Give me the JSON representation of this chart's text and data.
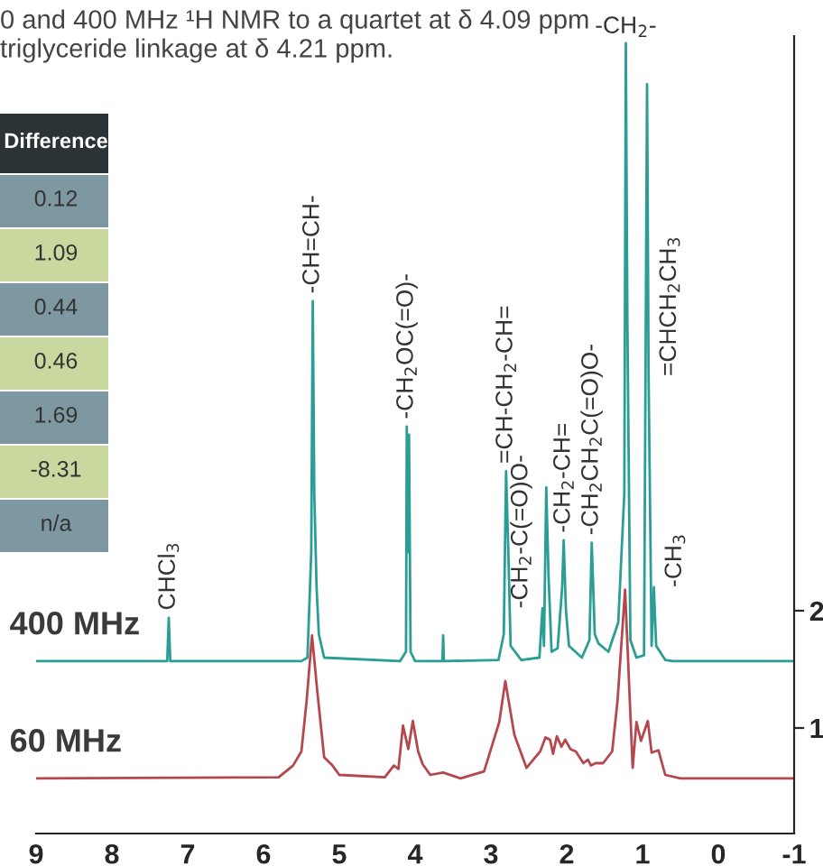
{
  "chart_data": {
    "type": "line",
    "xlim": [
      9,
      -1
    ],
    "xticks": [
      9,
      8,
      7,
      6,
      5,
      4,
      3,
      2,
      1,
      0,
      -1
    ],
    "ylim": [
      0.1,
      6.9
    ],
    "yticks": [
      1,
      2
    ],
    "legend": false,
    "grid": false,
    "series": [
      {
        "name": "400 MHz",
        "color": "#2a9d95",
        "x": [
          9,
          7.27,
          7.25,
          7.23,
          5.5,
          5.42,
          5.37,
          5.35,
          5.33,
          5.3,
          5.27,
          5.2,
          4.2,
          4.12,
          4.11,
          4.09,
          4.08,
          4.06,
          4.0,
          3.64,
          3.63,
          3.62,
          2.9,
          2.83,
          2.8,
          2.77,
          2.74,
          2.6,
          2.36,
          2.32,
          2.3,
          2.27,
          2.24,
          2.2,
          2.12,
          2.06,
          2.04,
          2.01,
          1.97,
          1.8,
          1.7,
          1.67,
          1.63,
          1.58,
          1.45,
          1.32,
          1.24,
          1.22,
          1.2,
          1.16,
          1.08,
          0.98,
          0.95,
          0.94,
          0.92,
          0.88,
          0.85,
          0.82,
          0.7,
          0.6,
          -1
        ],
        "values": [
          1.57,
          1.57,
          1.94,
          1.57,
          1.57,
          1.6,
          2.5,
          4.64,
          3.0,
          2.2,
          1.8,
          1.6,
          1.57,
          1.65,
          3.57,
          2.5,
          3.5,
          1.65,
          1.57,
          1.57,
          1.79,
          1.57,
          1.58,
          1.8,
          3.19,
          2.5,
          1.7,
          1.58,
          1.6,
          2.02,
          1.7,
          3.05,
          2.3,
          1.65,
          1.68,
          2.2,
          2.6,
          2.0,
          1.7,
          1.6,
          1.75,
          2.58,
          1.8,
          1.72,
          1.65,
          1.9,
          3.0,
          6.84,
          4.5,
          1.75,
          1.6,
          1.62,
          5.3,
          6.49,
          4.0,
          1.7,
          2.2,
          1.7,
          1.58,
          1.57,
          1.57
        ]
      },
      {
        "name": "60 MHz",
        "color": "#b5484f",
        "x": [
          9,
          5.8,
          5.61,
          5.5,
          5.43,
          5.36,
          5.29,
          5.2,
          5.09,
          5.0,
          4.4,
          4.28,
          4.22,
          4.16,
          4.09,
          4.03,
          3.96,
          3.9,
          3.8,
          3.63,
          3.4,
          3.09,
          2.89,
          2.81,
          2.69,
          2.53,
          2.35,
          2.28,
          2.22,
          2.18,
          2.13,
          2.07,
          2.02,
          1.95,
          1.88,
          1.78,
          1.72,
          1.68,
          1.62,
          1.52,
          1.4,
          1.33,
          1.23,
          1.13,
          1.08,
          1.02,
          0.93,
          0.88,
          0.79,
          0.7,
          0.5,
          -1
        ],
        "values": [
          0.57,
          0.58,
          0.68,
          0.8,
          1.24,
          1.79,
          1.31,
          0.75,
          0.68,
          0.6,
          0.58,
          0.68,
          0.65,
          1.02,
          0.82,
          1.06,
          0.8,
          0.69,
          0.6,
          0.62,
          0.57,
          0.63,
          1.05,
          1.4,
          0.94,
          0.66,
          0.8,
          0.92,
          0.9,
          0.78,
          0.93,
          0.84,
          0.9,
          0.82,
          0.8,
          0.7,
          0.73,
          0.68,
          0.7,
          0.7,
          0.8,
          1.23,
          2.18,
          0.66,
          1.05,
          0.89,
          1.06,
          0.79,
          0.81,
          0.6,
          0.57,
          0.57
        ]
      }
    ],
    "annotations": [
      "0 and 400 MHz ¹H NMR to a quartet at δ 4.09 ppm",
      "triglyceride linkage at δ 4.21 ppm.",
      {
        "text": "CHCl$_{3}$",
        "x": 7.25,
        "y": 1.94
      },
      {
        "text": "-CH=CH-",
        "x": 5.35,
        "y": 4.64
      },
      {
        "text": "-CH$_{2}$OC(=O)-",
        "x": 4.11,
        "y": 3.57
      },
      {
        "text": "=CH-CH$_{2}$-CH=",
        "x": 2.8,
        "y": 3.19
      },
      {
        "text": "-CH$_{2}$-C(=O)O-",
        "x": 2.32,
        "y": 2.02
      },
      {
        "text": "-CH$_{2}$-CH=",
        "x": 2.04,
        "y": 2.6
      },
      {
        "text": "-CH$_{2}$CH$_{2}$C(=O)O-",
        "x": 1.67,
        "y": 2.58
      },
      {
        "text": "-CH$_{2}$-",
        "x": 1.22,
        "y": 6.84
      },
      {
        "text": "=CHCH$_{2}$CH$_{3}$",
        "x": 0.92,
        "y": 4.0
      },
      {
        "text": "-CH$_{3}$",
        "x": 0.85,
        "y": 2.2
      },
      "Difference",
      "0.12",
      "1.09",
      "0.44",
      "0.46",
      "1.69",
      "-8.31",
      "n/a"
    ]
  }
}
